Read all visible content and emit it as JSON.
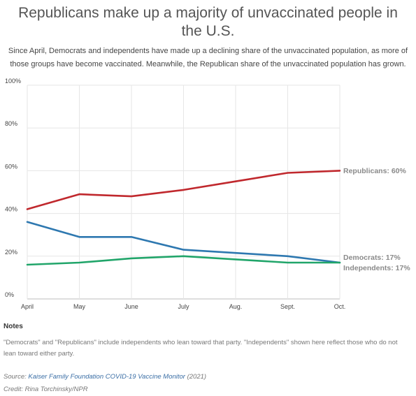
{
  "chart_data": {
    "type": "line",
    "title": "Republicans make up a majority of unvaccinated people in the U.S.",
    "subtitle": "Since April, Democrats and independents have made up a declining share of the unvaccinated population, as more of those groups have become vaccinated. Meanwhile, the Republican share of the unvaccinated population has grown.",
    "categories": [
      "April",
      "May",
      "June",
      "July",
      "Aug.",
      "Sept.",
      "Oct."
    ],
    "ylim": [
      0,
      100
    ],
    "yticks": [
      0,
      20,
      40,
      60,
      80,
      100
    ],
    "ytick_labels": [
      "0%",
      "20%",
      "40%",
      "60%",
      "80%",
      "100%"
    ],
    "grid": true,
    "series": [
      {
        "name": "Republicans",
        "color": "#c0282d",
        "end_label": "Republicans: 60%",
        "values": [
          42,
          49,
          48,
          51,
          55,
          59,
          60
        ]
      },
      {
        "name": "Democrats",
        "color": "#2e78b0",
        "end_label": "Democrats: 17%",
        "values": [
          36,
          29,
          29,
          23,
          21.5,
          20,
          17
        ]
      },
      {
        "name": "Independents",
        "color": "#21a56a",
        "end_label": "Independents: 17%",
        "values": [
          16,
          17,
          19,
          20,
          18.5,
          17,
          17
        ]
      }
    ]
  },
  "notes": {
    "heading": "Notes",
    "text": "\"Democrats\" and \"Republicans\" include independents who lean toward that party. \"Independents\" shown here reflect those who do not lean toward either party."
  },
  "source": {
    "prefix": "Source: ",
    "link_text": "Kaiser Family Foundation COVID-19 Vaccine Monitor",
    "suffix": " (2021)"
  },
  "credit": "Credit: Rina Torchinsky/NPR"
}
